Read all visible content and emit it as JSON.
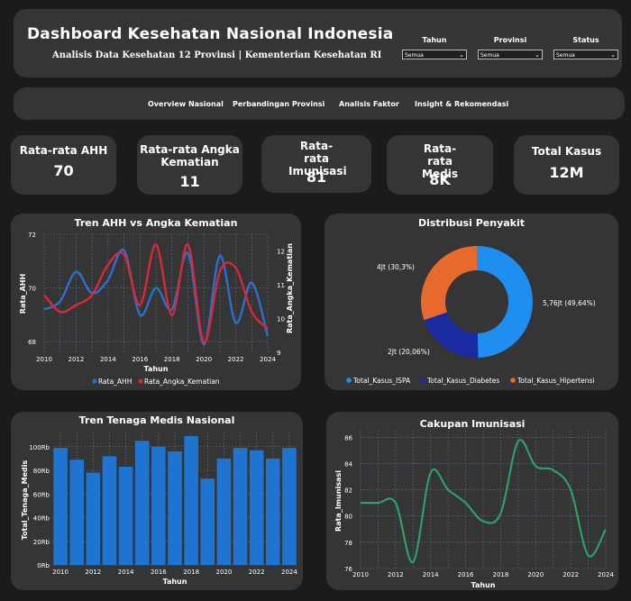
{
  "header": {
    "title": "Dashboard Kesehatan Nasional Indonesia",
    "subtitle": "Analisis Data Kesehatan 12 Provinsi | Kementerian Kesehatan RI"
  },
  "filters": [
    {
      "label": "Tahun",
      "value": "Semua"
    },
    {
      "label": "Provinsi",
      "value": "Semua"
    },
    {
      "label": "Status",
      "value": "Semua"
    }
  ],
  "nav": [
    "Overview Nasional",
    "Perbandingan Provinsi",
    "Analisis Faktor",
    "Insight & Rekomendasi"
  ],
  "kpis": [
    {
      "label": "Rata-rata AHH",
      "value": "70"
    },
    {
      "label": "Rata-rata Angka Kematian",
      "value": "11"
    },
    {
      "label": "Rata-rata Imunisasi",
      "value": "81"
    },
    {
      "label": "Rata-rata Medis",
      "value": "8K"
    },
    {
      "label": "Total Kasus",
      "value": "12M"
    }
  ],
  "colors": {
    "ahh": "#2b6fcf",
    "kematian": "#d8283b",
    "medis": "#1f74d1",
    "imunisasi": "#2e9e6e",
    "ispa": "#1e8ff0",
    "diabetes": "#1a2aa0",
    "hipertensi": "#e8692e"
  },
  "chart_data": [
    {
      "type": "line",
      "title": "Tren AHH vs Angka Kematian",
      "xlabel": "Tahun",
      "ylabel": "Rata_AHH",
      "y2label": "Rata_Angka_Kematian",
      "x": [
        2010,
        2011,
        2012,
        2013,
        2014,
        2015,
        2016,
        2017,
        2018,
        2019,
        2020,
        2021,
        2022,
        2023,
        2024
      ],
      "xticks": [
        "2010",
        "2012",
        "2014",
        "2016",
        "2018",
        "2020",
        "2022",
        "2024"
      ],
      "yticks": [
        "68",
        "70",
        "72"
      ],
      "y2ticks": [
        "9",
        "10",
        "11",
        "12"
      ],
      "ylim": [
        67.6,
        72
      ],
      "y2lim": [
        9,
        12.5
      ],
      "grid": true,
      "series": [
        {
          "name": "Rata_AHH",
          "axis": "left",
          "values": [
            69.2,
            69.5,
            70.6,
            69.8,
            70.3,
            71.4,
            69.0,
            70.0,
            69.2,
            71.3,
            67.9,
            71.2,
            68.7,
            70.2,
            68.2
          ]
        },
        {
          "name": "Rata_Angka_Kematian",
          "axis": "right",
          "values": [
            10.7,
            10.2,
            10.4,
            10.7,
            11.6,
            11.9,
            10.4,
            12.2,
            10.1,
            12.2,
            9.3,
            11.4,
            11.5,
            10.2,
            9.7
          ]
        }
      ],
      "legend": [
        "Rata_AHH",
        "Rata_Angka_Kematian"
      ],
      "legend_position": "bottom"
    },
    {
      "type": "pie",
      "title": "Distribusi Penyakit",
      "labels": [
        "Total_Kasus_ISPA",
        "Total_Kasus_Diabetes",
        "Total_Kasus_Hipertensi"
      ],
      "values": [
        49.64,
        20.06,
        30.3
      ],
      "data_labels": [
        "5,76Jt (49,64%)",
        "2Jt (20,06%)",
        "4Jt (30,3%)"
      ],
      "legend_position": "bottom"
    },
    {
      "type": "bar",
      "title": "Tren Tenaga Medis Nasional",
      "xlabel": "Tahun",
      "ylabel": "Total_Tenaga_Medis",
      "categories": [
        2010,
        2011,
        2012,
        2013,
        2014,
        2015,
        2016,
        2017,
        2018,
        2019,
        2020,
        2021,
        2022,
        2023,
        2024
      ],
      "xticks": [
        "2010",
        "2012",
        "2014",
        "2016",
        "2018",
        "2020",
        "2022",
        "2024"
      ],
      "yticks": [
        "0Rb",
        "20Rb",
        "40Rb",
        "60Rb",
        "80Rb",
        "100Rb"
      ],
      "values": [
        99,
        89,
        78,
        92,
        83,
        105,
        100,
        96,
        109,
        73,
        90,
        99,
        97,
        90,
        99
      ],
      "ylim": [
        0,
        112
      ],
      "grid": true
    },
    {
      "type": "line",
      "title": "Cakupan Imunisasi",
      "xlabel": "Tahun",
      "ylabel": "Rata_Imunisasi",
      "x": [
        2010,
        2011,
        2012,
        2013,
        2014,
        2015,
        2016,
        2017,
        2018,
        2019,
        2020,
        2021,
        2022,
        2023,
        2024
      ],
      "xticks": [
        "2010",
        "2012",
        "2014",
        "2016",
        "2018",
        "2020",
        "2022",
        "2024"
      ],
      "yticks": [
        "76",
        "78",
        "80",
        "82",
        "84",
        "86"
      ],
      "ylim": [
        76,
        86.5
      ],
      "grid": true,
      "series": [
        {
          "name": "Rata_Imunisasi",
          "values": [
            81.0,
            81.0,
            81.0,
            76.5,
            83.3,
            82.0,
            81.0,
            79.6,
            80.2,
            85.7,
            83.8,
            83.5,
            82.0,
            77.0,
            79.0
          ]
        }
      ]
    }
  ]
}
